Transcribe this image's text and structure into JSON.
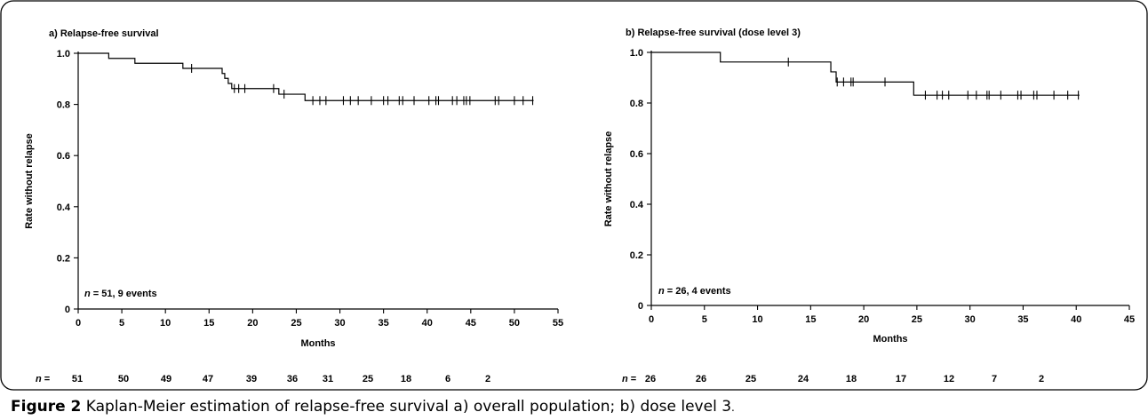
{
  "chart_data": [
    {
      "type": "line",
      "subtype": "kaplan-meier",
      "title": "a) Relapse-free survival",
      "xlabel": "Months",
      "ylabel": "Rate without relapse",
      "xlim": [
        0,
        55
      ],
      "ylim": [
        0,
        1.0
      ],
      "xticks": [
        0,
        5,
        10,
        15,
        20,
        25,
        30,
        35,
        40,
        45,
        50,
        55
      ],
      "yticks": [
        "0",
        "0.2",
        "0.4",
        "0.6",
        "0.8",
        "1.0"
      ],
      "annotation_n": "n",
      "annotation_rest": " = 51, 9 events",
      "series": [
        {
          "steps": [
            [
              0,
              1.0
            ],
            [
              3.5,
              0.98
            ],
            [
              6.5,
              0.961
            ],
            [
              12,
              0.941
            ],
            [
              16.5,
              0.921
            ],
            [
              16.8,
              0.902
            ],
            [
              17.2,
              0.882
            ],
            [
              17.6,
              0.862
            ],
            [
              23,
              0.84
            ],
            [
              26,
              0.815
            ]
          ],
          "end_x": 52.2,
          "censored": [
            13,
            17.9,
            18.4,
            19.1,
            22.4,
            23.6,
            26.9,
            27.7,
            28.4,
            30.4,
            31.2,
            32.1,
            33.6,
            35.0,
            35.5,
            36.8,
            37.2,
            38.5,
            40.2,
            41.0,
            41.3,
            42.9,
            43.4,
            44.2,
            44.5,
            44.9,
            47.8,
            48.2,
            50.0,
            51.0,
            52.1
          ]
        }
      ],
      "at_risk_label": "n",
      "at_risk_suffix": " =",
      "at_risk": [
        "51",
        "50",
        "49",
        "47",
        "39",
        "36",
        "31",
        "25",
        "18",
        "6",
        "2"
      ]
    },
    {
      "type": "line",
      "subtype": "kaplan-meier",
      "title": "b) Relapse-free survival (dose level 3)",
      "xlabel": "Months",
      "ylabel": "Rate without relapse",
      "xlim": [
        0,
        45
      ],
      "ylim": [
        0,
        1.0
      ],
      "xticks": [
        0,
        5,
        10,
        15,
        20,
        25,
        30,
        35,
        40,
        45
      ],
      "yticks": [
        "0",
        "0.2",
        "0.4",
        "0.6",
        "0.8",
        "1.0"
      ],
      "annotation_n": "n",
      "annotation_rest": " = 26, 4 events",
      "series": [
        {
          "steps": [
            [
              0,
              1.0
            ],
            [
              6.5,
              0.962
            ],
            [
              16.9,
              0.923
            ],
            [
              17.4,
              0.883
            ],
            [
              24.7,
              0.831
            ]
          ],
          "end_x": 40.3,
          "censored": [
            12.9,
            17.5,
            18.1,
            18.8,
            19.0,
            22.0,
            25.8,
            26.9,
            27.4,
            28.0,
            29.8,
            30.6,
            31.6,
            31.8,
            32.9,
            34.5,
            34.8,
            36.0,
            36.3,
            37.9,
            39.2,
            40.2
          ]
        }
      ],
      "at_risk_label": "n",
      "at_risk_suffix": " =",
      "at_risk": [
        "26",
        "26",
        "25",
        "24",
        "18",
        "17",
        "12",
        "7",
        "2"
      ]
    }
  ],
  "caption": {
    "label": "Figure 2",
    "text": " Kaplan-Meier estimation of relapse-free survival a) overall population; b) dose level 3",
    "end": "."
  }
}
